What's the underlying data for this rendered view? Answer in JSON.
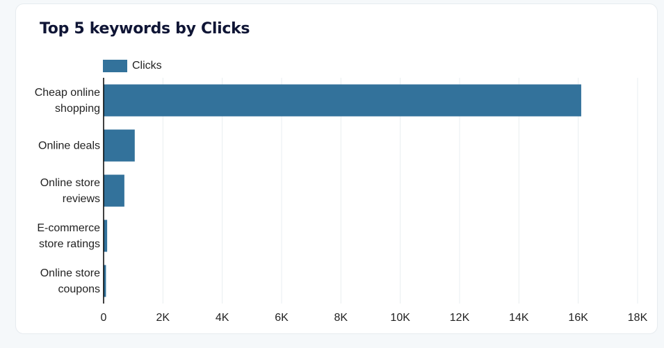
{
  "title": "Top 5 keywords by Clicks",
  "colors": {
    "bar": "#33729b",
    "grid": "#e8edf0",
    "axis": "#000000"
  },
  "chart_data": {
    "type": "bar",
    "orientation": "horizontal",
    "title": "Top 5 keywords by Clicks",
    "categories": [
      [
        "Cheap online",
        "shopping"
      ],
      [
        "Online deals"
      ],
      [
        "Online store",
        "reviews"
      ],
      [
        "E-commerce",
        "store ratings"
      ],
      [
        "Online store",
        "coupons"
      ]
    ],
    "series": [
      {
        "name": "Clicks",
        "values": [
          16100,
          1050,
          700,
          120,
          80
        ]
      }
    ],
    "xlim": [
      0,
      18000
    ],
    "ticks": [
      0,
      2000,
      4000,
      6000,
      8000,
      10000,
      12000,
      14000,
      16000,
      18000
    ],
    "tick_labels": [
      "0",
      "2K",
      "4K",
      "6K",
      "8K",
      "10K",
      "12K",
      "14K",
      "16K",
      "18K"
    ],
    "grid": true,
    "legend": "top-left"
  }
}
